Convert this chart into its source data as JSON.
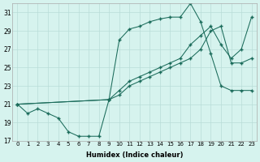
{
  "xlabel": "Humidex (Indice chaleur)",
  "bg_color": "#d6f3ee",
  "grid_color": "#b8ddd8",
  "line_color": "#1a6b5a",
  "xlim": [
    -0.5,
    23.5
  ],
  "ylim": [
    17,
    32
  ],
  "xticks": [
    0,
    1,
    2,
    3,
    4,
    5,
    6,
    7,
    8,
    9,
    10,
    11,
    12,
    13,
    14,
    15,
    16,
    17,
    18,
    19,
    20,
    21,
    22,
    23
  ],
  "yticks": [
    17,
    19,
    21,
    23,
    25,
    27,
    29,
    31
  ],
  "line1_x": [
    0,
    1,
    2,
    3,
    4,
    5,
    6,
    7,
    8,
    9,
    10,
    11,
    12,
    13,
    14,
    15,
    16,
    17,
    18,
    19,
    20,
    21,
    22,
    23
  ],
  "line1_y": [
    21,
    20,
    20.5,
    20,
    19.5,
    18.0,
    17.5,
    17.5,
    17.5,
    21.5,
    28,
    29.2,
    29.5,
    30.0,
    30.3,
    30.5,
    30.5,
    32.0,
    30.0,
    26.5,
    23,
    22.5,
    22.5,
    22.5
  ],
  "line2_x": [
    0,
    9,
    10,
    11,
    12,
    13,
    14,
    15,
    16,
    17,
    18,
    19,
    20,
    21,
    22,
    23
  ],
  "line2_y": [
    21,
    21.5,
    22.5,
    23.5,
    24.0,
    24.5,
    25.0,
    25.5,
    26.0,
    27.5,
    28.5,
    29.5,
    27.5,
    26.0,
    27.0,
    30.5
  ],
  "line3_x": [
    0,
    9,
    10,
    11,
    12,
    13,
    14,
    15,
    16,
    17,
    18,
    19,
    20,
    21,
    22,
    23
  ],
  "line3_y": [
    21,
    21.5,
    22.0,
    23.0,
    23.5,
    24.0,
    24.5,
    25.0,
    25.5,
    26.0,
    27.0,
    29.0,
    29.5,
    25.5,
    25.5,
    26.0
  ]
}
